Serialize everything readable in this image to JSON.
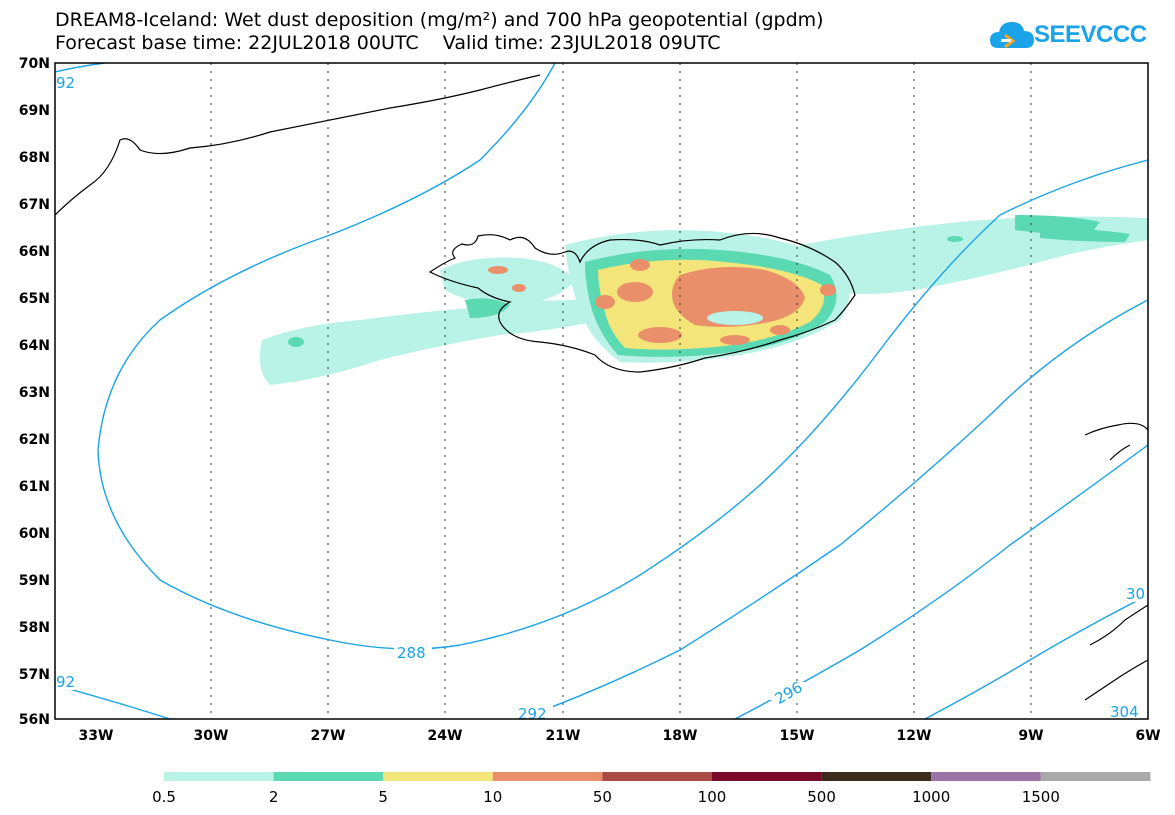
{
  "title": {
    "line1": "DREAM8-Iceland: Wet dust deposition (mg/m²) and 700 hPa geopotential (gpdm)",
    "line2": "Forecast base time: 22JUL2018 00UTC    Valid time: 23JUL2018 09UTC"
  },
  "logo": {
    "text": "SEEVCCC",
    "icon": "cloud-icon",
    "color": "#1aa3e8"
  },
  "map": {
    "lon_labels": [
      "33W",
      "30W",
      "27W",
      "24W",
      "21W",
      "18W",
      "15W",
      "12W",
      "9W",
      "6W"
    ],
    "lat_labels": [
      "70N",
      "69N",
      "68N",
      "67N",
      "66N",
      "65N",
      "64N",
      "63N",
      "62N",
      "61N",
      "60N",
      "59N",
      "58N",
      "57N",
      "56N"
    ],
    "contour_color": "#1aa3e8",
    "contour_labels": [
      "92",
      "288",
      "92",
      "292",
      "296",
      "30",
      "304"
    ]
  },
  "legend": {
    "colors": [
      "#b9f2e6",
      "#5ad9b2",
      "#f4e57a",
      "#e9906a",
      "#a84a45",
      "#7b0a2a",
      "#3a2b1a",
      "#9a74a8",
      "#a9a9a9"
    ],
    "labels": [
      "0.5",
      "2",
      "5",
      "10",
      "50",
      "100",
      "500",
      "1000",
      "1500"
    ]
  }
}
